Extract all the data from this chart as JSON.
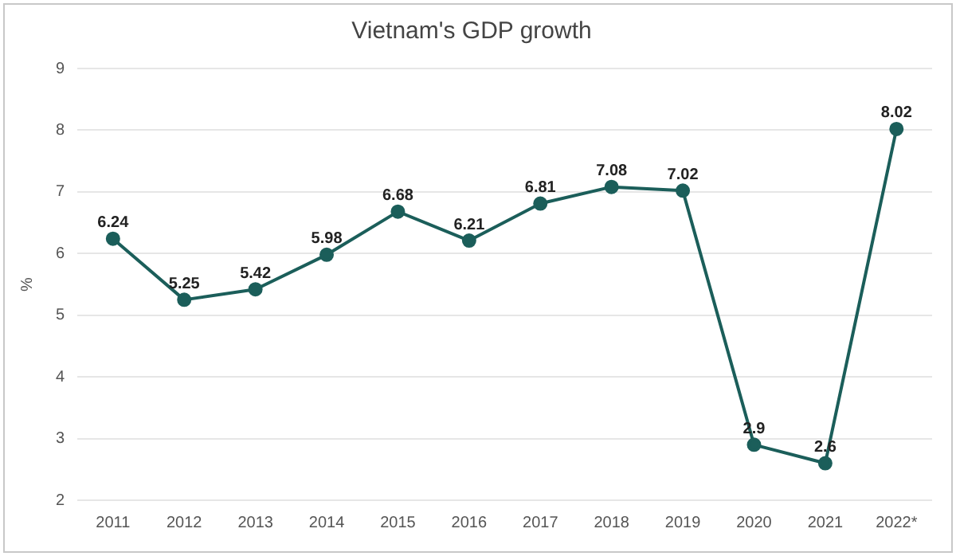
{
  "chart_data": {
    "type": "line",
    "title": "Vietnam's GDP growth",
    "ylabel": "%",
    "categories": [
      "2011",
      "2012",
      "2013",
      "2014",
      "2015",
      "2016",
      "2017",
      "2018",
      "2019",
      "2020",
      "2021",
      "2022*"
    ],
    "series": [
      {
        "color": "#1b5e5a",
        "values": [
          6.24,
          5.25,
          5.42,
          5.98,
          6.68,
          6.21,
          6.81,
          7.08,
          7.02,
          2.9,
          2.6,
          8.02
        ]
      }
    ],
    "ylim": [
      2,
      9
    ],
    "yticks": [
      2,
      3,
      4,
      5,
      6,
      7,
      8,
      9
    ],
    "grid": "y",
    "legend": false,
    "marker": "circle",
    "line_style": "solid",
    "data_labels": true
  }
}
